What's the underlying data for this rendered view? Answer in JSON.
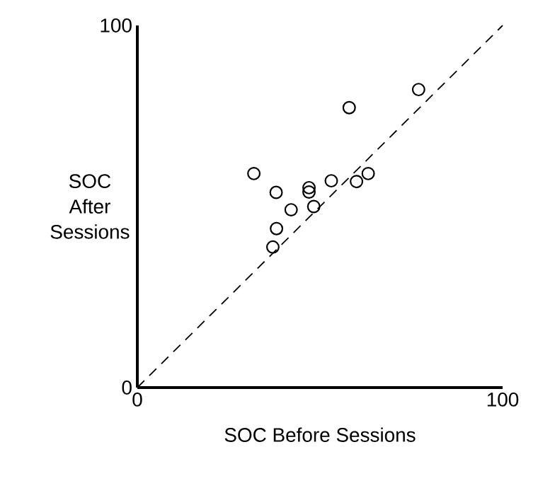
{
  "chart_data": {
    "type": "scatter",
    "xlabel": "SOC Before Sessions",
    "ylabel": "SOC After Sessions",
    "xlim": [
      0,
      100
    ],
    "ylim": [
      0,
      100
    ],
    "xticks": [
      0,
      100
    ],
    "yticks": [
      0,
      100
    ],
    "series": [
      {
        "color": "#000000",
        "marker": "circle",
        "x": [
          31.9,
          38.0,
          47.0,
          47.0,
          53.1,
          60.0,
          63.2,
          42.1,
          48.3,
          38.1,
          37.1,
          58.0,
          77.0
        ],
        "values": [
          59.1,
          53.9,
          55.2,
          54.0,
          57.1,
          56.9,
          59.1,
          49.1,
          50.0,
          43.9,
          38.8,
          77.3,
          82.3
        ]
      },
      {
        "type": "line",
        "color": "#000000",
        "marker": "none",
        "line_style": "dashed",
        "x": [
          0,
          100
        ],
        "values": [
          0,
          100
        ]
      }
    ]
  }
}
